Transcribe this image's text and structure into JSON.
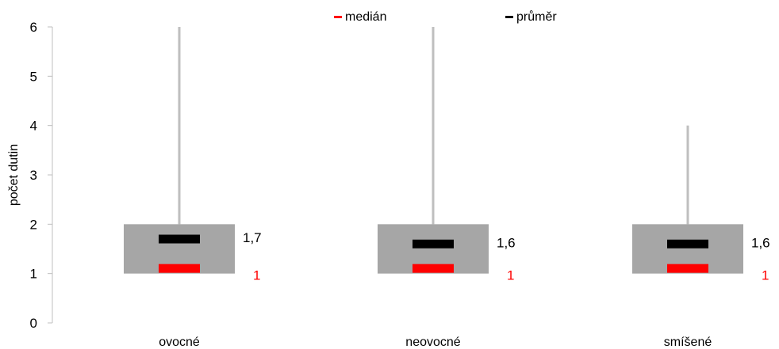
{
  "chart_data": {
    "type": "boxplot",
    "ylabel": "počet dutin",
    "ylim": [
      0,
      6
    ],
    "yticks": [
      "0",
      "1",
      "2",
      "3",
      "4",
      "5",
      "6"
    ],
    "categories": [
      "ovocné",
      "neovocné",
      "smíšené"
    ],
    "legend": [
      "medián",
      "průměr"
    ],
    "legend_position": "top",
    "grid": false,
    "boxes": [
      {
        "category": "ovocné",
        "min": 1,
        "q1": 1,
        "q3": 2,
        "max": 6,
        "median": 1,
        "mean": 1.7,
        "mean_label": "1,7",
        "median_label": "1"
      },
      {
        "category": "neovocné",
        "min": 1,
        "q1": 1,
        "q3": 2,
        "max": 6,
        "median": 1,
        "mean": 1.6,
        "mean_label": "1,6",
        "median_label": "1"
      },
      {
        "category": "smíšené",
        "min": 1,
        "q1": 1,
        "q3": 2,
        "max": 4,
        "median": 1,
        "mean": 1.6,
        "mean_label": "1,6",
        "median_label": "1"
      }
    ],
    "colors": {
      "box": "#a6a6a6",
      "whisker": "#bfbfbf",
      "median": "#ff0000",
      "mean": "#000000",
      "axis": "#bfbfbf"
    }
  }
}
